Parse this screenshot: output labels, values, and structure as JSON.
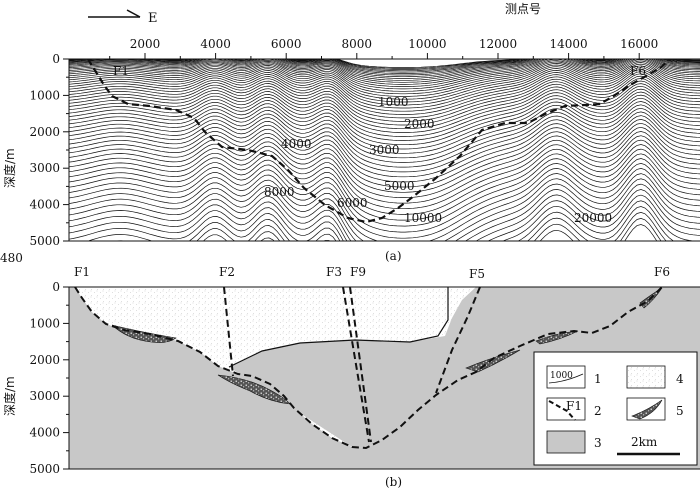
{
  "figure": {
    "direction_label": "E",
    "xaxis_label": "测点号",
    "yaxis_label": "深度/m",
    "panel_a_label": "(a)",
    "panel_b_label": "(b)"
  },
  "panel_a": {
    "x_ticks": [
      "2000",
      "4000",
      "6000",
      "8000",
      "10000",
      "12000",
      "14000",
      "16000"
    ],
    "y_ticks": [
      "0",
      "1000",
      "2000",
      "3000",
      "4000",
      "5000"
    ],
    "contour_labels": [
      "1000",
      "2000",
      "3000",
      "4000",
      "5000",
      "6000",
      "8000",
      "10000",
      "20000"
    ],
    "fault_labels": [
      "F1",
      "F6"
    ]
  },
  "panel_b": {
    "y_ticks": [
      "0",
      "1000",
      "2000",
      "3000",
      "4000",
      "5000"
    ],
    "corner_label": "480",
    "fault_labels": [
      "F1",
      "F2",
      "F3",
      "F9",
      "F5",
      "F6"
    ]
  },
  "legend": {
    "item1_value": "1000",
    "item2_text": "F1",
    "numbers": [
      "1",
      "2",
      "3",
      "4",
      "5"
    ],
    "scale_label": "2km"
  },
  "colors": {
    "basement": "#c8c8c8",
    "line": "#111111",
    "sediment_dots": "#9a9a9a"
  }
}
